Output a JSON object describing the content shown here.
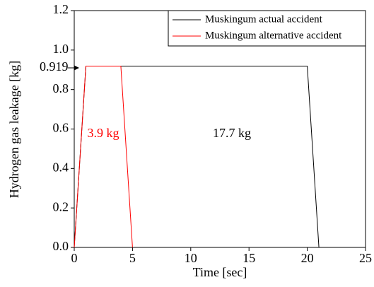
{
  "chart_data": {
    "type": "line",
    "xlabel": "Time [sec]",
    "ylabel": "Hydrogen gas leakage [kg]",
    "xlim": [
      0,
      25
    ],
    "ylim": [
      0,
      1.2
    ],
    "xticks": [
      0,
      5,
      10,
      15,
      20,
      25
    ],
    "yticks": [
      {
        "value": 0,
        "label": "0.0"
      },
      0.2,
      0.4,
      0.6,
      0.8,
      {
        "value": 1,
        "label": "1.0"
      },
      1.2
    ],
    "legend": "upper right",
    "series": [
      {
        "name": "Muskingum actual accident",
        "color": "#000000",
        "x": [
          0,
          1,
          20,
          21
        ],
        "values": [
          0,
          0.919,
          0.919,
          0
        ]
      },
      {
        "name": "Muskingum alternative accident",
        "color": "#ff0000",
        "x": [
          0,
          1,
          4,
          5
        ],
        "values": [
          0,
          0.919,
          0.919,
          0
        ]
      }
    ],
    "annotations": [
      {
        "text": "0.919",
        "color": "#000000"
      },
      {
        "text": "3.9 kg",
        "color": "#ff0000"
      },
      {
        "text": "17.7 kg",
        "color": "#000000"
      }
    ]
  }
}
